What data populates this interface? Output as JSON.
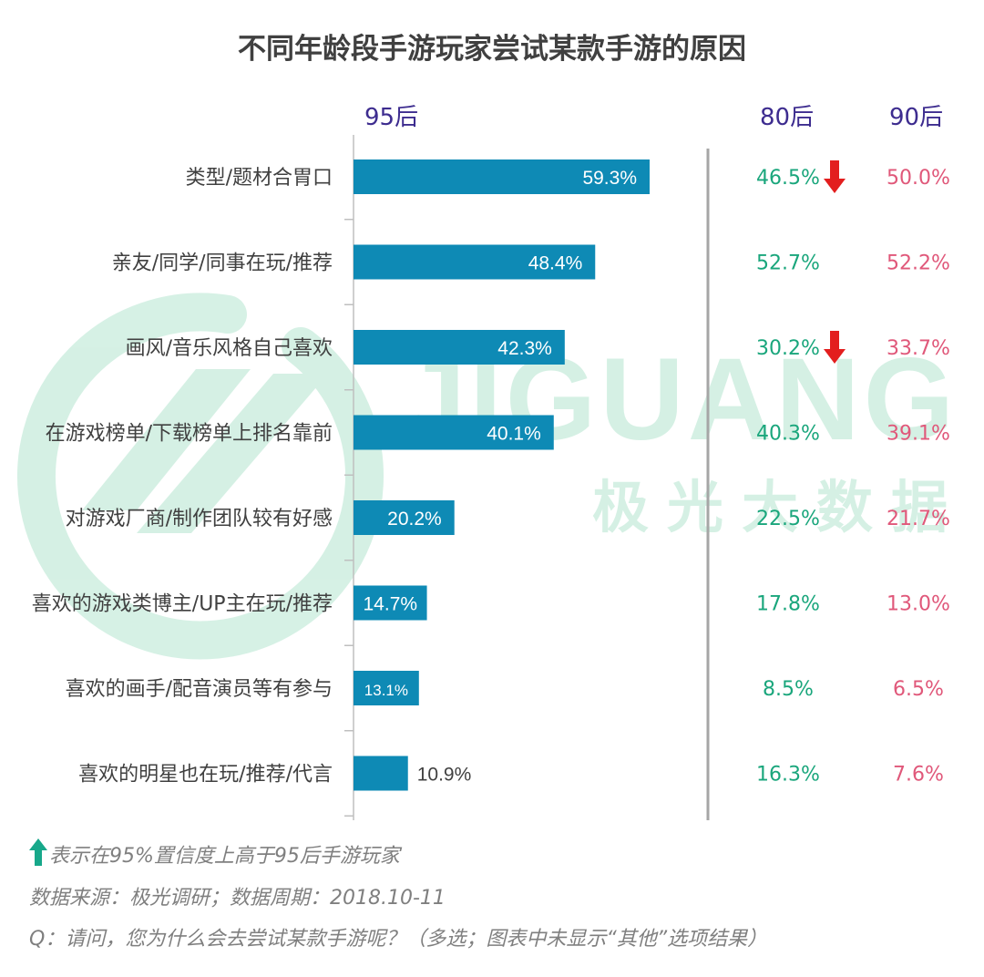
{
  "title": "不同年龄段手游玩家尝试某款手游的原因",
  "watermark": {
    "latin": "JIGUANG",
    "chinese": "极光大数据"
  },
  "columns": {
    "col95": "95后",
    "col80": "80后",
    "col90": "90后"
  },
  "colors": {
    "bar": "#0e8ab5",
    "green": "#1aa67c",
    "pink": "#e0587a",
    "arrow": "#e31e1e",
    "legend_arrow": "#17a88a",
    "header": "#3d2c8f",
    "watermark": "#5cc796"
  },
  "chart_data": {
    "type": "bar",
    "orientation": "horizontal",
    "title": "不同年龄段手游玩家尝试某款手游的原因",
    "categories": [
      "类型/题材合胃口",
      "亲友/同学/同事在玩/推荐",
      "画风/音乐风格自己喜欢",
      "在游戏榜单/下载榜单上排名靠前",
      "对游戏厂商/制作团队较有好感",
      "喜欢的游戏类博主/UP主在玩/推荐",
      "喜欢的画手/配音演员等有参与",
      "喜欢的明星也在玩/推荐/代言"
    ],
    "series": [
      {
        "name": "95后",
        "values": [
          59.3,
          48.4,
          42.3,
          40.1,
          20.2,
          14.7,
          13.1,
          10.9
        ],
        "labels": [
          "59.3%",
          "48.4%",
          "42.3%",
          "40.1%",
          "20.2%",
          "14.7%",
          "13.1%",
          "10.9%"
        ]
      },
      {
        "name": "80后",
        "values": [
          46.5,
          52.7,
          30.2,
          40.3,
          22.5,
          17.8,
          8.5,
          16.3
        ],
        "labels": [
          "46.5%",
          "52.7%",
          "30.2%",
          "40.3%",
          "22.5%",
          "17.8%",
          "8.5%",
          "16.3%"
        ],
        "down_markers": [
          true,
          false,
          true,
          false,
          false,
          false,
          false,
          false
        ]
      },
      {
        "name": "90后",
        "values": [
          50.0,
          52.2,
          33.7,
          39.1,
          21.7,
          13.0,
          6.5,
          7.6
        ],
        "labels": [
          "50.0%",
          "52.2%",
          "33.7%",
          "39.1%",
          "21.7%",
          "13.0%",
          "6.5%",
          "7.6%"
        ]
      }
    ],
    "grid": false,
    "legend": "none"
  },
  "footnotes": {
    "legend_text": "表示在95%置信度上高于95后手游玩家",
    "source": "数据来源：极光调研；数据周期：2018.10-11",
    "question": "Q：请问，您为什么会去尝试某款手游呢？（多选；图表中未显示“其他”选项结果）"
  }
}
